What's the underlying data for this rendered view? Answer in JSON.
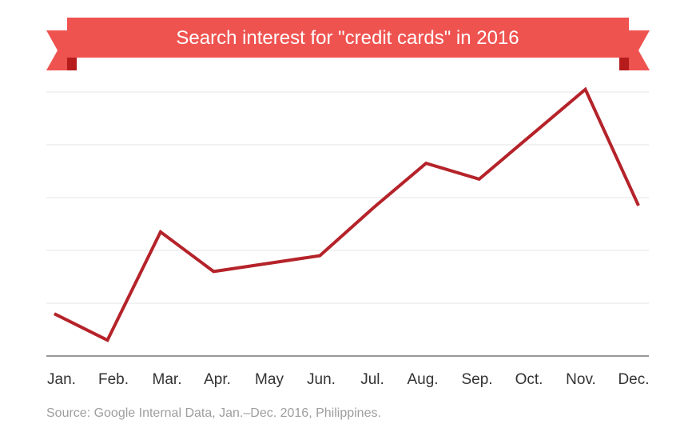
{
  "colors": {
    "banner": "#ef5350",
    "banner_fold": "#b71c1c",
    "line": "#b5232a",
    "grid": "#e6e6e6",
    "axis": "#757575"
  },
  "source_note": "Source: Google Internal Data, Jan.–Dec. 2016, Philippines.",
  "chart_data": {
    "type": "line",
    "title": "Search interest for \"credit cards\" in 2016",
    "xlabel": "",
    "ylabel": "",
    "categories": [
      "Jan.",
      "Feb.",
      "Mar.",
      "Apr.",
      "May",
      "Jun.",
      "Jul.",
      "Aug.",
      "Sep.",
      "Oct.",
      "Nov.",
      "Dec."
    ],
    "series": [
      {
        "values": [
          16,
          6,
          47,
          32,
          35,
          38,
          56,
          73,
          67,
          84,
          101,
          57
        ]
      }
    ],
    "ylim": [
      0,
      100
    ],
    "grid": true,
    "legend": "none"
  }
}
